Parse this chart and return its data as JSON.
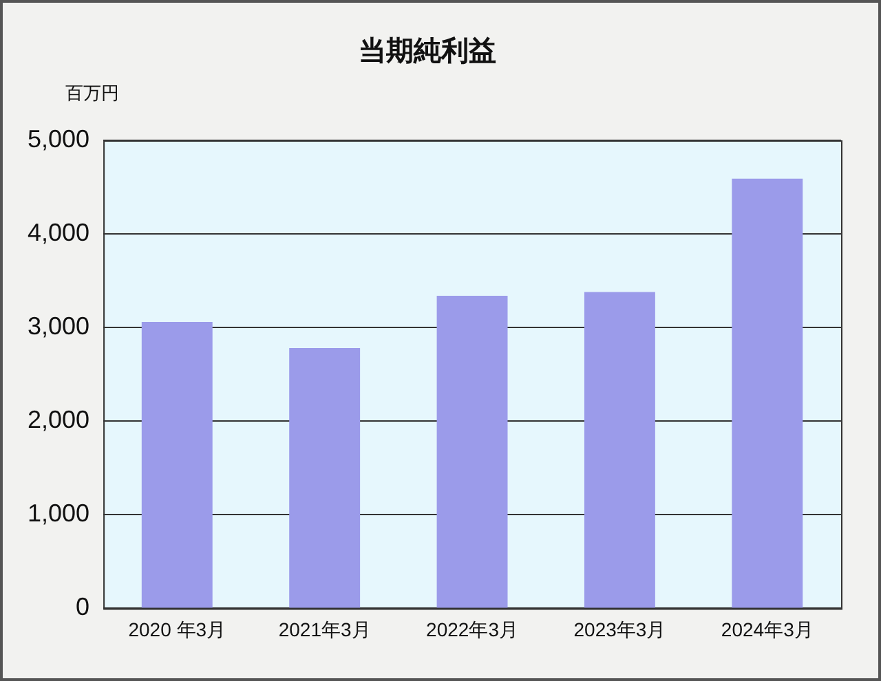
{
  "chart_data": {
    "type": "bar",
    "title": "当期純利益",
    "ylabel": "百万円",
    "categories": [
      "2020 年3月",
      "2021年3月",
      "2022年3月",
      "2023年3月",
      "2024年3月"
    ],
    "values": [
      3060,
      2780,
      3340,
      3380,
      4590
    ],
    "color": "#9b9bea",
    "ylim": [
      0,
      5000
    ],
    "yticks": [
      {
        "value": 0,
        "label": "0"
      },
      {
        "value": 1000,
        "label": "1,000"
      },
      {
        "value": 2000,
        "label": "2,000"
      },
      {
        "value": 3000,
        "label": "3,000"
      },
      {
        "value": 4000,
        "label": "4,000"
      },
      {
        "value": 5000,
        "label": "5,000"
      }
    ],
    "grid": "y",
    "legend": false
  }
}
